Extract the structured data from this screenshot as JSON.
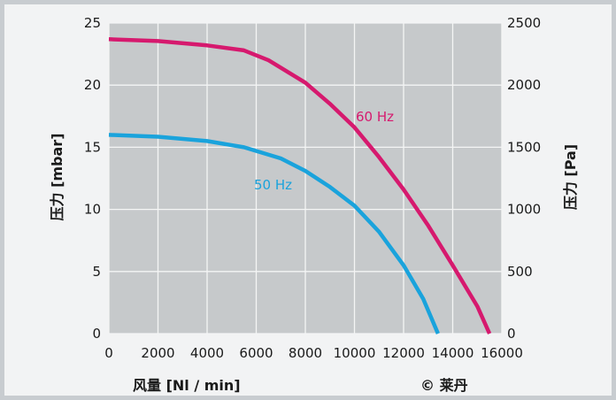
{
  "chart_data": {
    "type": "line",
    "xlabel": "风量 [Nl / min]",
    "ylabel_left": "压力 [mbar]",
    "ylabel_right": "压力 [Pa]",
    "copyright": "© 莱丹",
    "xlim": [
      0,
      16000
    ],
    "ylim_left": [
      0,
      25
    ],
    "ylim_right": [
      0,
      2500
    ],
    "x_ticks": [
      "0",
      "2000",
      "4000",
      "6000",
      "8000",
      "10000",
      "12000",
      "14000",
      "16000"
    ],
    "y_ticks_left": [
      "0",
      "5",
      "10",
      "15",
      "20",
      "25"
    ],
    "y_ticks_right": [
      "0",
      "500",
      "1000",
      "1500",
      "2000",
      "2500"
    ],
    "grid": true,
    "series": [
      {
        "name": "60 Hz",
        "color": "#d6196e",
        "x": [
          0,
          2000,
          4000,
          5500,
          6500,
          8000,
          9000,
          10000,
          11000,
          12000,
          13000,
          14000,
          15000,
          15500
        ],
        "y": [
          23.7,
          23.55,
          23.2,
          22.8,
          22.0,
          20.2,
          18.5,
          16.6,
          14.2,
          11.6,
          8.7,
          5.5,
          2.2,
          0
        ]
      },
      {
        "name": "50 Hz",
        "color": "#1aa3dc",
        "x": [
          0,
          2000,
          4000,
          5500,
          7000,
          8000,
          9000,
          10000,
          11000,
          12000,
          12800,
          13400
        ],
        "y": [
          16.0,
          15.85,
          15.5,
          15.0,
          14.1,
          13.1,
          11.8,
          10.3,
          8.2,
          5.5,
          2.8,
          0
        ]
      }
    ]
  }
}
